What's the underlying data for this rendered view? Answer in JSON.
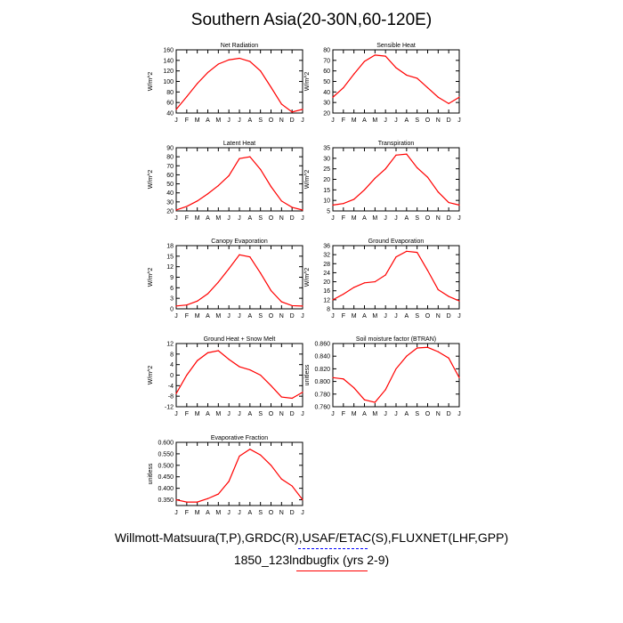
{
  "title": "Southern Asia(20-30N,60-120E)",
  "legend": {
    "observations": "Willmott-Matsuura(T,P),GRDC(R),USAF/ETAC(S),FLUXNET(LHF,GPP)",
    "observations_color": "#0000ff",
    "observations_style": "dashed",
    "model": "1850_123lndbugfix (yrs 2-9)",
    "model_color": "#ff0000"
  },
  "chart_data": [
    {
      "type": "line",
      "title": "Net Radiation",
      "ylabel": "W/m^2",
      "x": [
        "J",
        "F",
        "M",
        "A",
        "M",
        "J",
        "J",
        "A",
        "S",
        "O",
        "N",
        "D",
        "J"
      ],
      "ylim": [
        40,
        160
      ],
      "yticks": [
        40,
        60,
        80,
        100,
        120,
        140,
        160
      ],
      "series": [
        {
          "values": [
            47,
            71,
            96,
            117,
            133,
            141,
            144,
            138,
            120,
            89,
            57,
            42,
            47
          ],
          "color": "#ff0000"
        }
      ]
    },
    {
      "type": "line",
      "title": "Sensible Heat",
      "ylabel": "W/m^2",
      "x": [
        "J",
        "F",
        "M",
        "A",
        "M",
        "J",
        "J",
        "A",
        "S",
        "O",
        "N",
        "D",
        "J"
      ],
      "ylim": [
        20,
        80
      ],
      "yticks": [
        20,
        30,
        40,
        50,
        60,
        70,
        80
      ],
      "series": [
        {
          "values": [
            35,
            44,
            57,
            69,
            75,
            74,
            63,
            56,
            53,
            44,
            35,
            29,
            35
          ],
          "color": "#ff0000"
        }
      ]
    },
    {
      "type": "line",
      "title": "Latent Heat",
      "ylabel": "W/m^2",
      "x": [
        "J",
        "F",
        "M",
        "A",
        "M",
        "J",
        "J",
        "A",
        "S",
        "O",
        "N",
        "D",
        "J"
      ],
      "ylim": [
        20,
        90
      ],
      "yticks": [
        20,
        30,
        40,
        50,
        60,
        70,
        80,
        90
      ],
      "series": [
        {
          "values": [
            21,
            25,
            31,
            39,
            48,
            59,
            78,
            80,
            66,
            47,
            31,
            24,
            21
          ],
          "color": "#ff0000"
        }
      ]
    },
    {
      "type": "line",
      "title": "Transpiration",
      "ylabel": "W/m^2",
      "x": [
        "J",
        "F",
        "M",
        "A",
        "M",
        "J",
        "J",
        "A",
        "S",
        "O",
        "N",
        "D",
        "J"
      ],
      "ylim": [
        5,
        35
      ],
      "yticks": [
        5,
        10,
        15,
        20,
        25,
        30,
        35
      ],
      "series": [
        {
          "values": [
            7.8,
            8.5,
            10.5,
            15,
            20.5,
            25,
            31.5,
            32,
            25.5,
            21,
            14,
            9,
            7.8
          ],
          "color": "#ff0000"
        }
      ]
    },
    {
      "type": "line",
      "title": "Canopy Evaporation",
      "ylabel": "W/m^2",
      "x": [
        "J",
        "F",
        "M",
        "A",
        "M",
        "J",
        "J",
        "A",
        "S",
        "O",
        "N",
        "D",
        "J"
      ],
      "ylim": [
        0,
        18
      ],
      "yticks": [
        0,
        3,
        6,
        9,
        12,
        15,
        18
      ],
      "series": [
        {
          "values": [
            0.8,
            1.1,
            2.2,
            4.3,
            7.6,
            11.4,
            15.4,
            14.8,
            10.2,
            5.2,
            2,
            0.9,
            0.8
          ],
          "color": "#ff0000"
        }
      ]
    },
    {
      "type": "line",
      "title": "Ground Evaporation",
      "ylabel": "W/m^2",
      "x": [
        "J",
        "F",
        "M",
        "A",
        "M",
        "J",
        "J",
        "A",
        "S",
        "O",
        "N",
        "D",
        "J"
      ],
      "ylim": [
        8,
        36
      ],
      "yticks": [
        8,
        12,
        16,
        20,
        24,
        28,
        32,
        36
      ],
      "series": [
        {
          "values": [
            12,
            14.5,
            17.5,
            19.5,
            20,
            23,
            31,
            33.5,
            33,
            25,
            16.5,
            13.5,
            11.5
          ],
          "color": "#ff0000"
        }
      ]
    },
    {
      "type": "line",
      "title": "Ground Heat + Snow Melt",
      "ylabel": "W/m^2",
      "x": [
        "J",
        "F",
        "M",
        "A",
        "M",
        "J",
        "J",
        "A",
        "S",
        "O",
        "N",
        "D",
        "J"
      ],
      "ylim": [
        -12,
        12
      ],
      "yticks": [
        -12,
        -8,
        -4,
        0,
        4,
        8,
        12
      ],
      "series": [
        {
          "values": [
            -7,
            0,
            5.5,
            8.5,
            9.3,
            6,
            3.2,
            2,
            0,
            -4,
            -8.3,
            -8.8,
            -6.5
          ],
          "color": "#ff0000"
        }
      ]
    },
    {
      "type": "line",
      "title": "Soil moisture factor (BTRAN)",
      "ylabel": "unitless",
      "x": [
        "J",
        "F",
        "M",
        "A",
        "M",
        "J",
        "J",
        "A",
        "S",
        "O",
        "N",
        "D",
        "J"
      ],
      "ylim": [
        0.76,
        0.86
      ],
      "yticks": [
        "0.760",
        "0.780",
        "0.800",
        "0.820",
        "0.840",
        "0.860"
      ],
      "series": [
        {
          "values": [
            0.806,
            0.804,
            0.79,
            0.771,
            0.767,
            0.787,
            0.82,
            0.84,
            0.853,
            0.854,
            0.847,
            0.837,
            0.806
          ],
          "color": "#ff0000"
        }
      ]
    },
    {
      "type": "line",
      "title": "Evaporative Fraction",
      "ylabel": "unitless",
      "x": [
        "J",
        "F",
        "M",
        "A",
        "M",
        "J",
        "J",
        "A",
        "S",
        "O",
        "N",
        "D",
        "J"
      ],
      "ylim": [
        0.325,
        0.6
      ],
      "yticks": [
        "0.350",
        "0.400",
        "0.450",
        "0.500",
        "0.550",
        "0.600"
      ],
      "series": [
        {
          "values": [
            0.35,
            0.34,
            0.34,
            0.355,
            0.375,
            0.43,
            0.54,
            0.57,
            0.545,
            0.5,
            0.44,
            0.41,
            0.35
          ],
          "color": "#ff0000"
        }
      ]
    }
  ]
}
